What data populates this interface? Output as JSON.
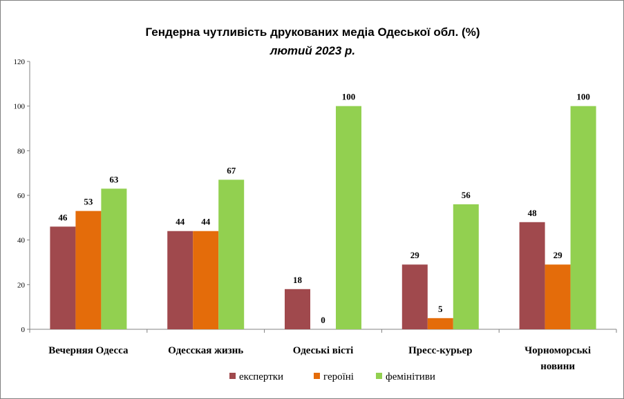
{
  "chart_data": {
    "type": "bar",
    "title": "Гендерна чутливість друкованих медіа Одеської обл. (%)",
    "subtitle": "лютий 2023 р.",
    "categories": [
      [
        "Вечерняя Одесса"
      ],
      [
        "Одесская жизнь"
      ],
      [
        "Одеські вісті"
      ],
      [
        "Пресс-курьер"
      ],
      [
        "Чорноморські",
        "новини"
      ]
    ],
    "series": [
      {
        "name": "експертки",
        "color": "#a0494d",
        "values": [
          46,
          44,
          18,
          29,
          48
        ]
      },
      {
        "name": "героїні",
        "color": "#e46c0a",
        "values": [
          53,
          44,
          0,
          5,
          29
        ]
      },
      {
        "name": "фемінітиви",
        "color": "#92d050",
        "values": [
          63,
          67,
          100,
          56,
          100
        ]
      }
    ],
    "ylim": [
      0,
      120
    ],
    "yticks": [
      0,
      20,
      40,
      60,
      80,
      100,
      120
    ],
    "grid": false,
    "legend_position": "bottom"
  }
}
